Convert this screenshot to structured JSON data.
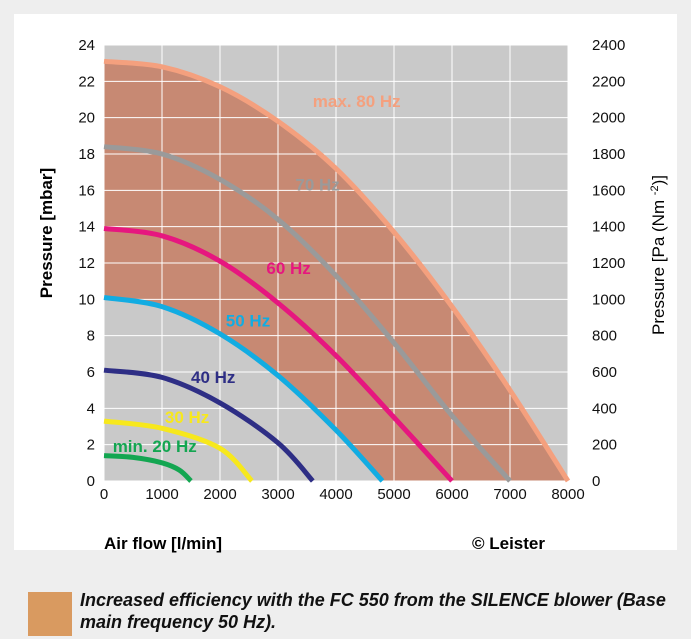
{
  "chart_data": {
    "type": "line",
    "xlabel": "Air flow [l/min]",
    "ylabel": "Pressure [mbar]",
    "y2label": "Pressure [Pa (Nm -2)]",
    "xlim": [
      0,
      8000
    ],
    "ylim": [
      0,
      24
    ],
    "y2lim": [
      0,
      2400
    ],
    "x_ticks": [
      "0",
      "1000",
      "2000",
      "3000",
      "4000",
      "5000",
      "6000",
      "7000",
      "8000"
    ],
    "y_ticks": [
      "0",
      "2",
      "4",
      "6",
      "8",
      "10",
      "12",
      "14",
      "16",
      "18",
      "20",
      "22",
      "24"
    ],
    "y2_ticks": [
      "0",
      "200",
      "400",
      "600",
      "800",
      "1000",
      "1200",
      "1400",
      "1600",
      "1800",
      "2000",
      "2200",
      "2400"
    ],
    "grid": true,
    "copyright": "© Leister",
    "series": [
      {
        "name": "max. 80 Hz",
        "color": "#f4a07e",
        "x": [
          0,
          1000,
          2000,
          3000,
          4000,
          5000,
          6000,
          7000,
          8000
        ],
        "y": [
          23.1,
          22.8,
          21.7,
          19.8,
          17.2,
          13.7,
          9.6,
          5.0,
          0
        ]
      },
      {
        "name": "70 Hz",
        "color": "#9a9a9a",
        "x": [
          0,
          1000,
          2000,
          3000,
          4000,
          5000,
          6000,
          7000
        ],
        "y": [
          18.4,
          18.0,
          16.6,
          14.4,
          11.3,
          7.6,
          3.6,
          0
        ]
      },
      {
        "name": "60 Hz",
        "color": "#e6177f",
        "x": [
          0,
          1000,
          2000,
          3000,
          4000,
          5000,
          6000
        ],
        "y": [
          13.9,
          13.5,
          12.1,
          9.8,
          6.9,
          3.5,
          0
        ]
      },
      {
        "name": "50 Hz",
        "color": "#12ace2",
        "x": [
          0,
          1000,
          2000,
          3000,
          4000,
          4800
        ],
        "y": [
          10.1,
          9.6,
          8.1,
          5.8,
          2.8,
          0
        ]
      },
      {
        "name": "40 Hz",
        "color": "#2e2e85",
        "x": [
          0,
          1000,
          2000,
          3000,
          3600
        ],
        "y": [
          6.1,
          5.7,
          4.3,
          2.1,
          0
        ]
      },
      {
        "name": "30 Hz",
        "color": "#f7e81c",
        "x": [
          0,
          1000,
          2000,
          2550
        ],
        "y": [
          3.3,
          2.9,
          1.8,
          0
        ]
      },
      {
        "name": "min. 20 Hz",
        "color": "#13a651",
        "x": [
          0,
          500,
          1000,
          1300,
          1500
        ],
        "y": [
          1.4,
          1.3,
          1.0,
          0.6,
          0
        ]
      }
    ],
    "shaded_region": {
      "between": [
        "50 Hz",
        "max. 80 Hz"
      ],
      "color": "#c7836b"
    },
    "legend": {
      "swatch_color": "#d99a60",
      "text": "Increased efficiency with the FC 550 from the SILENCE blower (Base main frequency 50 Hz)."
    }
  }
}
